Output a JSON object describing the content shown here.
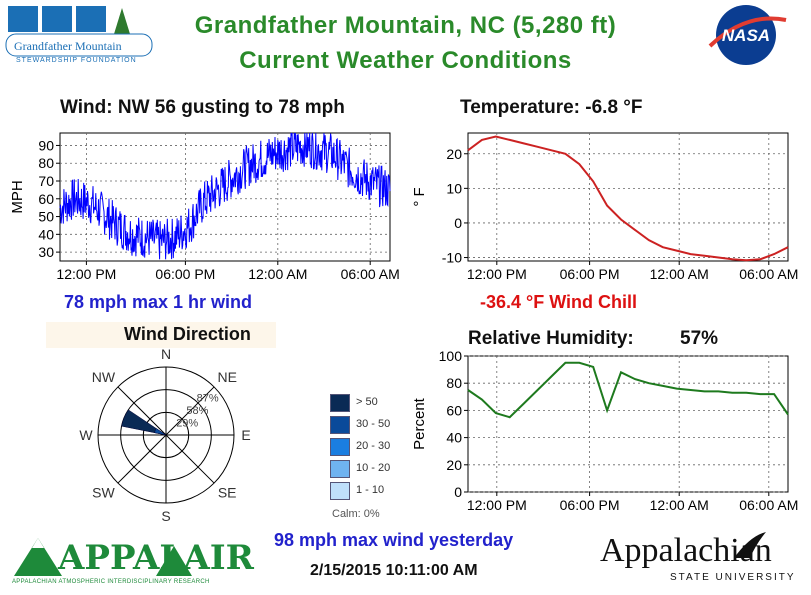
{
  "header": {
    "title_line1": "Grandfather Mountain, NC  (5,280 ft)",
    "title_line2": "Current Weather Conditions",
    "logo_left_text": "Grandfather Mountain",
    "logo_left_subtext": "STEWARDSHIP FOUNDATION",
    "logo_right_text": "NASA"
  },
  "wind": {
    "heading": "Wind:  NW  56 gusting to   78 mph",
    "max_text": "78 mph max 1 hr wind",
    "ylabel": "MPH"
  },
  "temperature": {
    "heading": "Temperature:  -6.8 °F",
    "windchill_text": "-36.4 °F Wind Chill",
    "ylabel": "° F"
  },
  "direction": {
    "heading": "Wind Direction",
    "labels": {
      "N": "N",
      "NE": "NE",
      "E": "E",
      "SE": "SE",
      "S": "S",
      "SW": "SW",
      "W": "W",
      "NW": "NW"
    },
    "rings": [
      "29%",
      "58%",
      "87%"
    ],
    "legend": [
      {
        "label": "> 50",
        "color": "#0a2a55"
      },
      {
        "label": "30 - 50",
        "color": "#0a4a9a"
      },
      {
        "label": "20 - 30",
        "color": "#1a7ee0"
      },
      {
        "label": "10 - 20",
        "color": "#6fb3f0"
      },
      {
        "label": "1 - 10",
        "color": "#bfe0fb"
      }
    ],
    "calm": "Calm: 0%"
  },
  "humidity": {
    "heading": "Relative Humidity:",
    "value": "57%",
    "ylabel": "Percent"
  },
  "footer": {
    "max_yesterday": "98 mph max wind yesterday",
    "timestamp": "2/15/2015 10:11:00 AM",
    "logo_appal": "APPALAIR",
    "logo_appal_sub": "APPALACHIAN ATMOSPHERIC INTERDISCIPLINARY RESEARCH",
    "logo_asu": "Appalachian",
    "logo_asu_sub": "STATE UNIVERSITY"
  },
  "chart_data": [
    {
      "type": "line",
      "name": "wind",
      "x_tick_labels": [
        "12:00 PM",
        "06:00 PM",
        "12:00 AM",
        "06:00 AM"
      ],
      "y_ticks": [
        30,
        40,
        50,
        60,
        70,
        80,
        90
      ],
      "ylim": [
        25,
        97
      ],
      "series": [
        {
          "color": "#0000ff",
          "x": [
            0,
            1,
            2,
            3,
            4,
            5,
            6,
            7,
            8,
            9,
            10,
            11,
            12,
            13,
            14,
            15,
            16,
            17,
            18,
            19,
            20,
            21,
            22,
            23
          ],
          "values": [
            55,
            60,
            58,
            52,
            45,
            40,
            38,
            36,
            38,
            45,
            58,
            65,
            72,
            78,
            82,
            86,
            88,
            90,
            88,
            85,
            78,
            72,
            68,
            65
          ],
          "spread": 12
        }
      ]
    },
    {
      "type": "line",
      "name": "temperature",
      "x_tick_labels": [
        "12:00 PM",
        "06:00 PM",
        "12:00 AM",
        "06:00 AM"
      ],
      "y_ticks": [
        -10,
        0,
        10,
        20
      ],
      "ylim": [
        -11,
        26
      ],
      "series": [
        {
          "color": "#cc2222",
          "x": [
            0,
            1,
            2,
            3,
            4,
            5,
            6,
            7,
            8,
            9,
            10,
            11,
            12,
            13,
            14,
            15,
            16,
            17,
            18,
            19,
            20,
            21,
            22,
            23
          ],
          "values": [
            21,
            24,
            25,
            24,
            23,
            22,
            21,
            20,
            17,
            12,
            5,
            1,
            -2,
            -5,
            -7,
            -8,
            -9,
            -9.5,
            -10,
            -10.5,
            -10.8,
            -10.5,
            -9,
            -7
          ]
        }
      ]
    },
    {
      "type": "line",
      "name": "humidity",
      "x_tick_labels": [
        "12:00 PM",
        "06:00 PM",
        "12:00 AM",
        "06:00 AM"
      ],
      "y_ticks": [
        0,
        20,
        40,
        60,
        80,
        100
      ],
      "ylim": [
        0,
        100
      ],
      "series": [
        {
          "color": "#1e7a1e",
          "x": [
            0,
            1,
            2,
            3,
            4,
            5,
            6,
            7,
            8,
            9,
            10,
            11,
            12,
            13,
            14,
            15,
            16,
            17,
            18,
            19,
            20,
            21,
            22,
            23
          ],
          "values": [
            75,
            68,
            58,
            55,
            65,
            75,
            85,
            95,
            95,
            92,
            60,
            88,
            83,
            80,
            78,
            76,
            75,
            74,
            74,
            73,
            73,
            72,
            72,
            57
          ]
        }
      ]
    },
    {
      "type": "rose",
      "name": "wind-direction",
      "directions": [
        "N",
        "NE",
        "E",
        "SE",
        "S",
        "SW",
        "W",
        "NW"
      ],
      "rings_pct": [
        29,
        58,
        87
      ],
      "sectors": [
        {
          "dir_deg": 292.5,
          "pct": 58,
          "color": "#0a2a55"
        },
        {
          "dir_deg": 292.5,
          "pct": 15,
          "color": "#0a4a9a"
        }
      ]
    }
  ]
}
